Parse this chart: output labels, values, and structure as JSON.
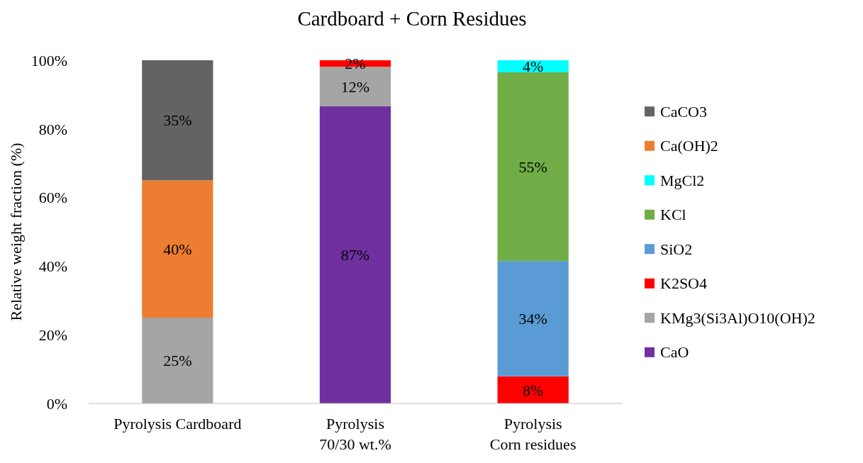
{
  "chart_data": {
    "type": "bar",
    "stacked": true,
    "title": "Cardboard + Corn Residues",
    "ylabel": "Relative weight fraction (%)",
    "categories": [
      "Pyrolysis Cardboard",
      "Pyrolysis\n70/30 wt.%",
      "Pyrolysis\nCorn residues"
    ],
    "ylim": [
      0,
      100
    ],
    "yticks": [
      {
        "value": 0,
        "label": "0%"
      },
      {
        "value": 20,
        "label": "20%"
      },
      {
        "value": 40,
        "label": "40%"
      },
      {
        "value": 60,
        "label": "60%"
      },
      {
        "value": 80,
        "label": "80%"
      },
      {
        "value": 100,
        "label": "100%"
      }
    ],
    "grid": false,
    "legend": "right",
    "series": [
      {
        "name": "CaO",
        "color": "#7030a0",
        "values": [
          null,
          86.6,
          null
        ],
        "value_labels": [
          null,
          "87%",
          null
        ]
      },
      {
        "name": "KMg3(Si3Al)O10(OH)2",
        "color": "#a5a5a5",
        "values": [
          25,
          11.5,
          null
        ],
        "value_labels": [
          "25%",
          "12%",
          null
        ]
      },
      {
        "name": "K2SO4",
        "color": "#ff0000",
        "values": [
          null,
          1.9,
          7.9
        ],
        "value_labels": [
          null,
          "2%",
          "8%"
        ]
      },
      {
        "name": "SiO2",
        "color": "#5b9bd5",
        "values": [
          null,
          null,
          33.6
        ],
        "value_labels": [
          null,
          null,
          "34%"
        ]
      },
      {
        "name": "KCl",
        "color": "#70ad47",
        "values": [
          null,
          null,
          55
        ],
        "value_labels": [
          null,
          null,
          "55%"
        ]
      },
      {
        "name": "MgCl2",
        "color": "#00ffff",
        "values": [
          null,
          null,
          3.5
        ],
        "value_labels": [
          null,
          null,
          "4%"
        ]
      },
      {
        "name": "Ca(OH)2",
        "color": "#ed7d31",
        "values": [
          40,
          null,
          null
        ],
        "value_labels": [
          "40%",
          null,
          null
        ]
      },
      {
        "name": "CaCO3",
        "color": "#636363",
        "values": [
          35,
          null,
          null
        ],
        "value_labels": [
          "35%",
          null,
          null
        ]
      }
    ]
  }
}
